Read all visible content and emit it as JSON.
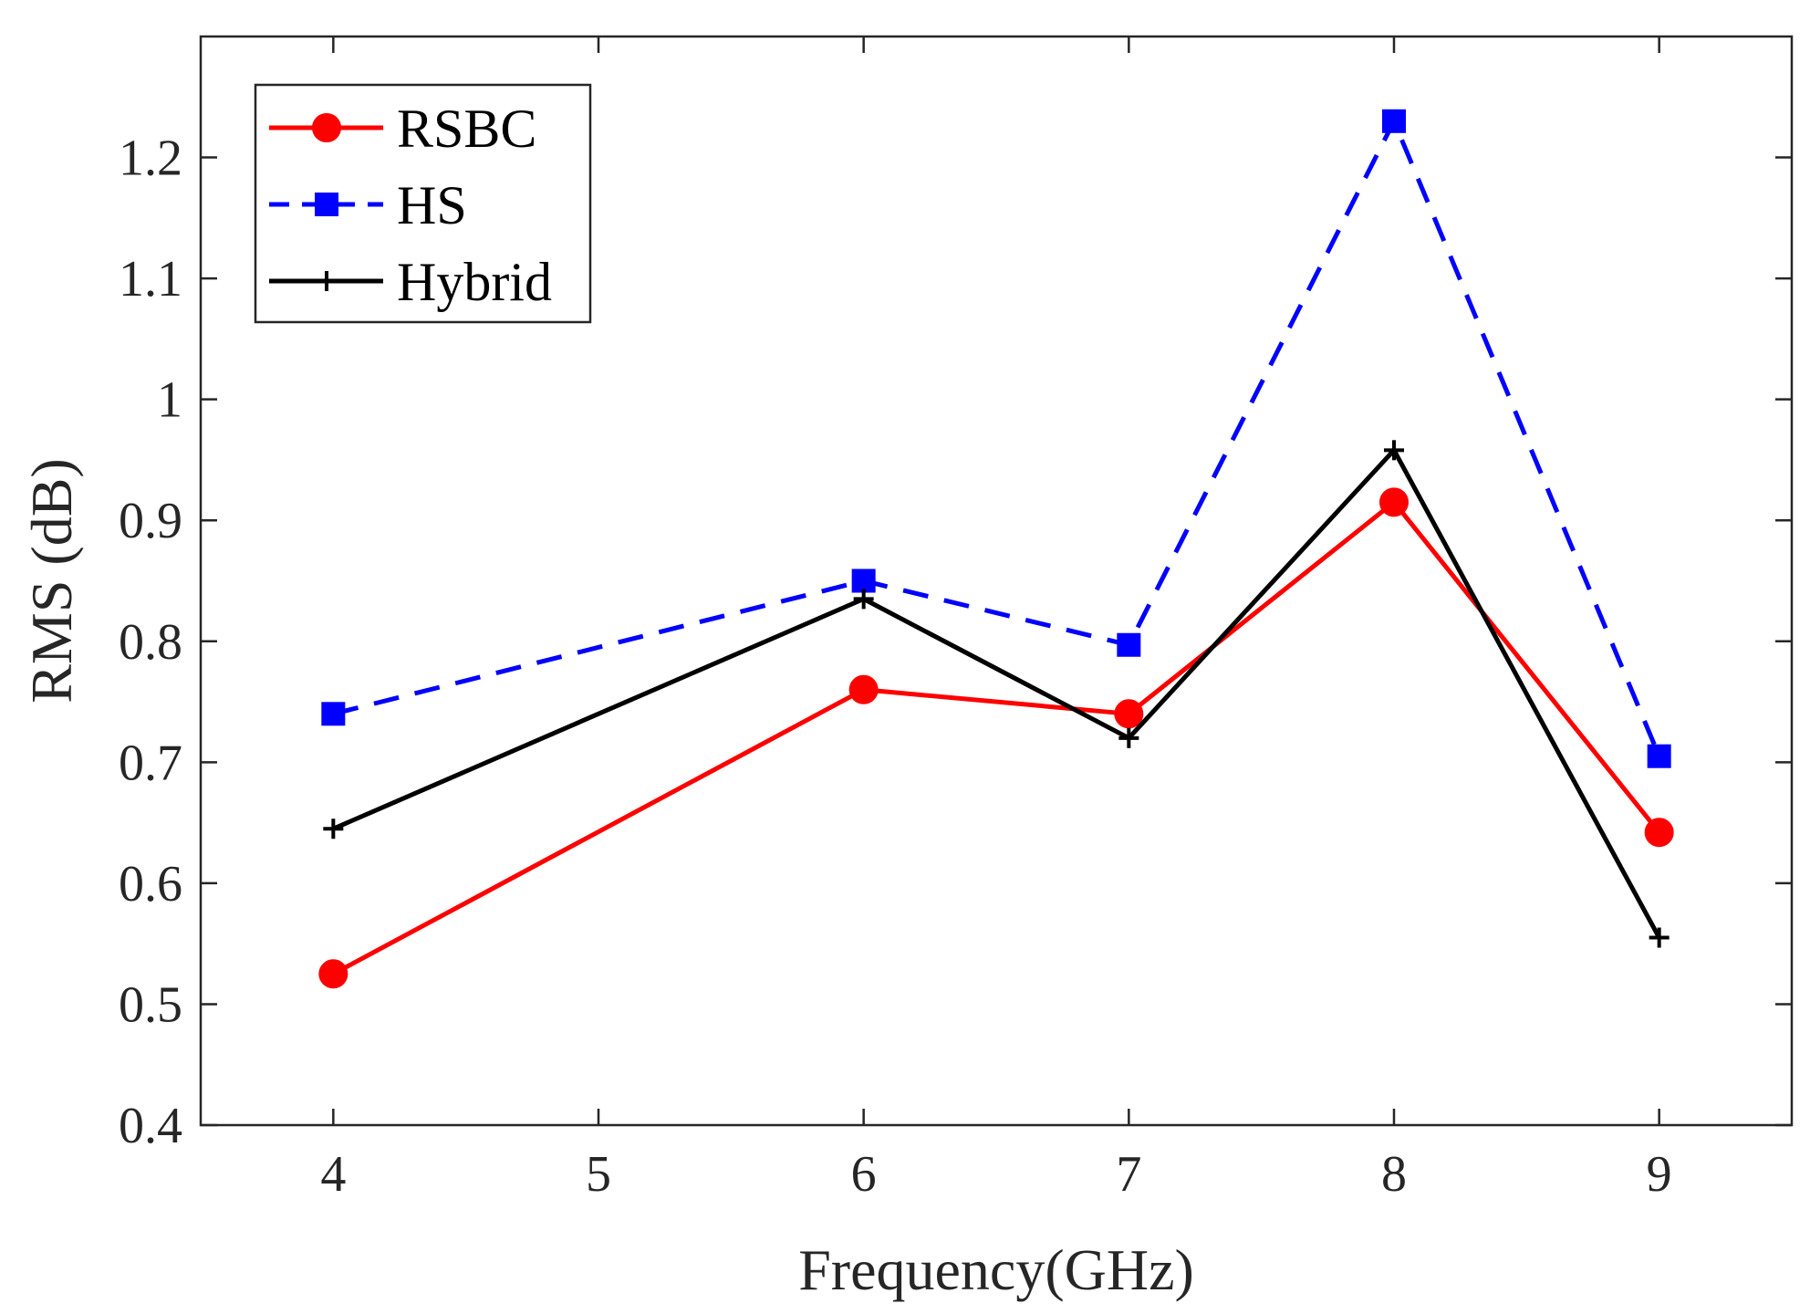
{
  "chart_data": {
    "type": "line",
    "title": "",
    "xlabel": "Frequency(GHz)",
    "ylabel": "RMS (dB)",
    "xlim": [
      3.5,
      9.5
    ],
    "ylim": [
      0.4,
      1.3
    ],
    "xticks": [
      4,
      5,
      6,
      7,
      8,
      9
    ],
    "yticks": [
      0.4,
      0.5,
      0.6,
      0.7,
      0.8,
      0.9,
      1,
      1.1,
      1.2
    ],
    "ytick_labels": [
      "0.4",
      "0.5",
      "0.6",
      "0.7",
      "0.8",
      "0.9",
      "1",
      "1.1",
      "1.2"
    ],
    "xtick_labels": [
      "4",
      "5",
      "6",
      "7",
      "8",
      "9"
    ],
    "grid": false,
    "legend_position": "top-left",
    "x": [
      4,
      6,
      7,
      8,
      9
    ],
    "series": [
      {
        "name": "RSBC",
        "values": [
          0.525,
          0.76,
          0.74,
          0.915,
          0.642
        ],
        "color": "#ff0000",
        "dash": "solid",
        "marker": "circle"
      },
      {
        "name": "HS",
        "values": [
          0.74,
          0.85,
          0.797,
          1.23,
          0.705
        ],
        "color": "#0000ff",
        "dash": "dashed",
        "marker": "square"
      },
      {
        "name": "Hybrid",
        "values": [
          0.645,
          0.835,
          0.72,
          0.958,
          0.555
        ],
        "color": "#000000",
        "dash": "solid",
        "marker": "plus"
      }
    ]
  }
}
